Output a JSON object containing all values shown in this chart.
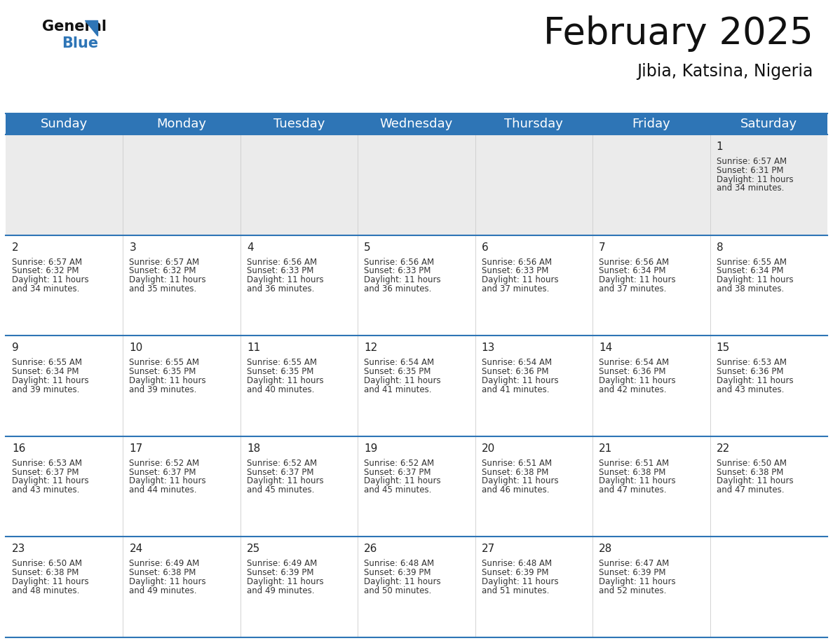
{
  "title": "February 2025",
  "subtitle": "Jibia, Katsina, Nigeria",
  "header_bg": "#2E75B6",
  "header_text_color": "#FFFFFF",
  "row0_bg": "#EBEBEB",
  "row_bg": "#FFFFFF",
  "border_color": "#2E75B6",
  "cell_border_color": "#CCCCCC",
  "day_headers": [
    "Sunday",
    "Monday",
    "Tuesday",
    "Wednesday",
    "Thursday",
    "Friday",
    "Saturday"
  ],
  "calendar_data": [
    [
      {
        "day": null,
        "sunrise": null,
        "sunset": null,
        "daylight": null
      },
      {
        "day": null,
        "sunrise": null,
        "sunset": null,
        "daylight": null
      },
      {
        "day": null,
        "sunrise": null,
        "sunset": null,
        "daylight": null
      },
      {
        "day": null,
        "sunrise": null,
        "sunset": null,
        "daylight": null
      },
      {
        "day": null,
        "sunrise": null,
        "sunset": null,
        "daylight": null
      },
      {
        "day": null,
        "sunrise": null,
        "sunset": null,
        "daylight": null
      },
      {
        "day": 1,
        "sunrise": "6:57 AM",
        "sunset": "6:31 PM",
        "daylight": "11 hours and 34 minutes."
      }
    ],
    [
      {
        "day": 2,
        "sunrise": "6:57 AM",
        "sunset": "6:32 PM",
        "daylight": "11 hours and 34 minutes."
      },
      {
        "day": 3,
        "sunrise": "6:57 AM",
        "sunset": "6:32 PM",
        "daylight": "11 hours and 35 minutes."
      },
      {
        "day": 4,
        "sunrise": "6:56 AM",
        "sunset": "6:33 PM",
        "daylight": "11 hours and 36 minutes."
      },
      {
        "day": 5,
        "sunrise": "6:56 AM",
        "sunset": "6:33 PM",
        "daylight": "11 hours and 36 minutes."
      },
      {
        "day": 6,
        "sunrise": "6:56 AM",
        "sunset": "6:33 PM",
        "daylight": "11 hours and 37 minutes."
      },
      {
        "day": 7,
        "sunrise": "6:56 AM",
        "sunset": "6:34 PM",
        "daylight": "11 hours and 37 minutes."
      },
      {
        "day": 8,
        "sunrise": "6:55 AM",
        "sunset": "6:34 PM",
        "daylight": "11 hours and 38 minutes."
      }
    ],
    [
      {
        "day": 9,
        "sunrise": "6:55 AM",
        "sunset": "6:34 PM",
        "daylight": "11 hours and 39 minutes."
      },
      {
        "day": 10,
        "sunrise": "6:55 AM",
        "sunset": "6:35 PM",
        "daylight": "11 hours and 39 minutes."
      },
      {
        "day": 11,
        "sunrise": "6:55 AM",
        "sunset": "6:35 PM",
        "daylight": "11 hours and 40 minutes."
      },
      {
        "day": 12,
        "sunrise": "6:54 AM",
        "sunset": "6:35 PM",
        "daylight": "11 hours and 41 minutes."
      },
      {
        "day": 13,
        "sunrise": "6:54 AM",
        "sunset": "6:36 PM",
        "daylight": "11 hours and 41 minutes."
      },
      {
        "day": 14,
        "sunrise": "6:54 AM",
        "sunset": "6:36 PM",
        "daylight": "11 hours and 42 minutes."
      },
      {
        "day": 15,
        "sunrise": "6:53 AM",
        "sunset": "6:36 PM",
        "daylight": "11 hours and 43 minutes."
      }
    ],
    [
      {
        "day": 16,
        "sunrise": "6:53 AM",
        "sunset": "6:37 PM",
        "daylight": "11 hours and 43 minutes."
      },
      {
        "day": 17,
        "sunrise": "6:52 AM",
        "sunset": "6:37 PM",
        "daylight": "11 hours and 44 minutes."
      },
      {
        "day": 18,
        "sunrise": "6:52 AM",
        "sunset": "6:37 PM",
        "daylight": "11 hours and 45 minutes."
      },
      {
        "day": 19,
        "sunrise": "6:52 AM",
        "sunset": "6:37 PM",
        "daylight": "11 hours and 45 minutes."
      },
      {
        "day": 20,
        "sunrise": "6:51 AM",
        "sunset": "6:38 PM",
        "daylight": "11 hours and 46 minutes."
      },
      {
        "day": 21,
        "sunrise": "6:51 AM",
        "sunset": "6:38 PM",
        "daylight": "11 hours and 47 minutes."
      },
      {
        "day": 22,
        "sunrise": "6:50 AM",
        "sunset": "6:38 PM",
        "daylight": "11 hours and 47 minutes."
      }
    ],
    [
      {
        "day": 23,
        "sunrise": "6:50 AM",
        "sunset": "6:38 PM",
        "daylight": "11 hours and 48 minutes."
      },
      {
        "day": 24,
        "sunrise": "6:49 AM",
        "sunset": "6:38 PM",
        "daylight": "11 hours and 49 minutes."
      },
      {
        "day": 25,
        "sunrise": "6:49 AM",
        "sunset": "6:39 PM",
        "daylight": "11 hours and 49 minutes."
      },
      {
        "day": 26,
        "sunrise": "6:48 AM",
        "sunset": "6:39 PM",
        "daylight": "11 hours and 50 minutes."
      },
      {
        "day": 27,
        "sunrise": "6:48 AM",
        "sunset": "6:39 PM",
        "daylight": "11 hours and 51 minutes."
      },
      {
        "day": 28,
        "sunrise": "6:47 AM",
        "sunset": "6:39 PM",
        "daylight": "11 hours and 52 minutes."
      },
      {
        "day": null,
        "sunrise": null,
        "sunset": null,
        "daylight": null
      }
    ]
  ],
  "title_fontsize": 38,
  "subtitle_fontsize": 17,
  "header_fontsize": 13,
  "day_num_fontsize": 11,
  "cell_text_fontsize": 8.5
}
